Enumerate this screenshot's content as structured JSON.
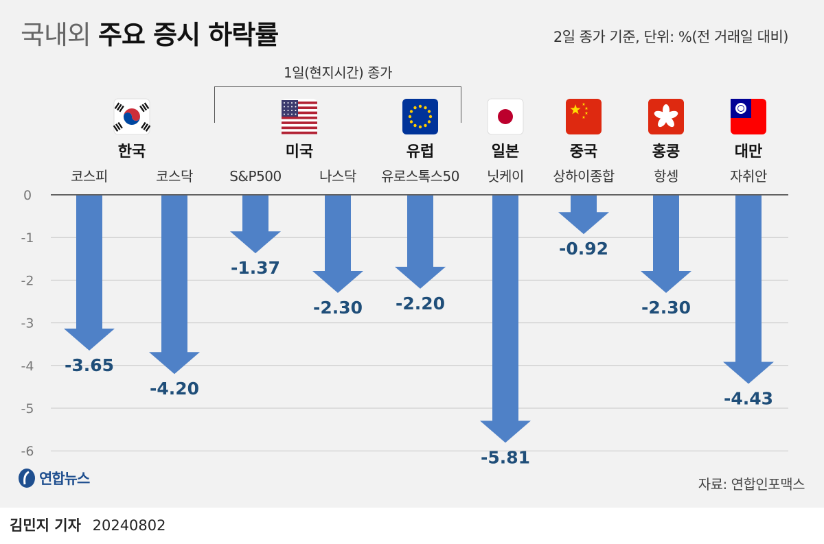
{
  "title": {
    "light": "국내외",
    "bold": "주요 증시 하락률"
  },
  "unit_note": "2일 종가 기준, 단위: %(전 거래일 대비)",
  "bracket_label": "1일(현지시간) 종가",
  "countries": [
    {
      "name": "한국",
      "flag": "korea-flag-icon"
    },
    {
      "name": "미국",
      "flag": "usa-flag-icon"
    },
    {
      "name": "유럽",
      "flag": "eu-flag-icon"
    },
    {
      "name": "일본",
      "flag": "japan-flag-icon"
    },
    {
      "name": "중국",
      "flag": "china-flag-icon"
    },
    {
      "name": "홍콩",
      "flag": "hongkong-flag-icon"
    },
    {
      "name": "대만",
      "flag": "taiwan-flag-icon"
    }
  ],
  "colors": {
    "arrow": "#4f81c7",
    "value_label": "#1f4e79",
    "gridline": "#c8c8c8",
    "axis": "#333333",
    "background": "#f2f2f2"
  },
  "chart_data": {
    "type": "bar",
    "title": "국내외 주요 증시 하락률",
    "categories": [
      "코스피",
      "코스닥",
      "S&P500",
      "나스닥",
      "유로스톡스50",
      "닛케이",
      "상하이종합",
      "항셍",
      "자취안"
    ],
    "values": [
      -3.65,
      -4.2,
      -1.37,
      -2.3,
      -2.2,
      -5.81,
      -0.92,
      -2.3,
      -4.43
    ],
    "value_labels": [
      "-3.65",
      "-4.20",
      "-1.37",
      "-2.30",
      "-2.20",
      "-5.81",
      "-0.92",
      "-2.30",
      "-4.43"
    ],
    "yticks": [
      "0",
      "-1",
      "-2",
      "-3",
      "-4",
      "-5",
      "-6"
    ],
    "ylim": [
      -6,
      0
    ],
    "xlabel": "",
    "ylabel": "%"
  },
  "source": "자료: 연합인포맥스",
  "logo_text": "연합뉴스",
  "byline": {
    "author": "김민지 기자",
    "date": "20240802"
  }
}
